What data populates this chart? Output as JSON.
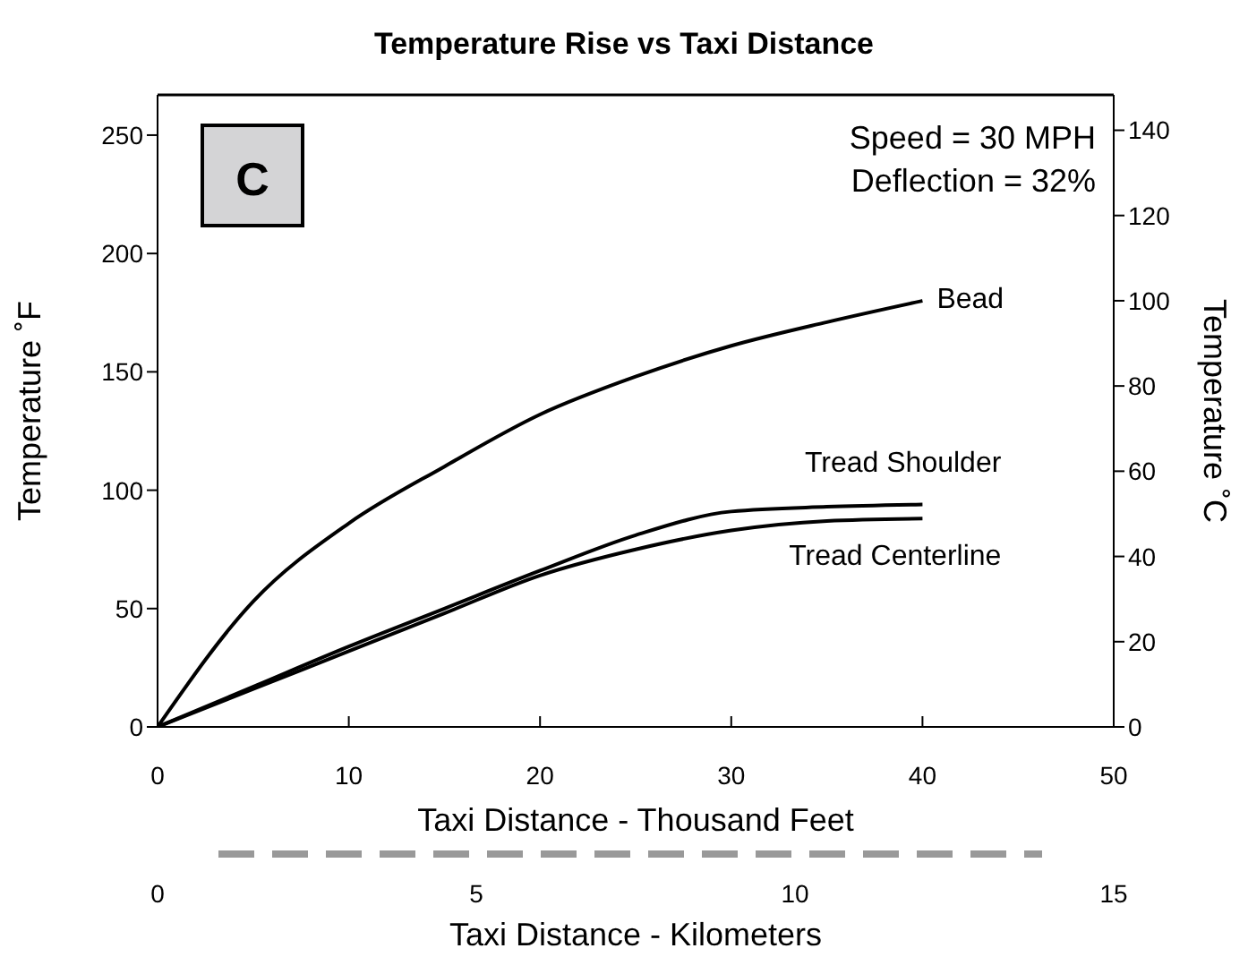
{
  "chart_data": {
    "type": "line",
    "title": "Temperature Rise vs Taxi Distance",
    "xlabel": "Taxi Distance - Thousand Feet",
    "ylabel": "Temperature ˚F",
    "y2label": "Temperature ˚C",
    "x2label": "Taxi Distance - Kilometers",
    "x": [
      0,
      5,
      10,
      15,
      20,
      25,
      30,
      35,
      40
    ],
    "series": [
      {
        "name": "Bead",
        "color": "#000000",
        "values": [
          0,
          53,
          86,
          110,
          132,
          148,
          161,
          171,
          180
        ]
      },
      {
        "name": "Tread Shoulder",
        "color": "#000000",
        "values": [
          0,
          17,
          34,
          50,
          66,
          81,
          91,
          93,
          94
        ]
      },
      {
        "name": "Tread Centerline",
        "color": "#000000",
        "values": [
          0,
          16,
          32,
          48,
          64,
          75,
          83,
          87,
          88
        ]
      }
    ],
    "xlim": [
      0,
      50
    ],
    "xticks": [
      0,
      10,
      20,
      30,
      40,
      50
    ],
    "x2lim": [
      0,
      15
    ],
    "x2ticks": [
      0,
      5,
      10,
      15
    ],
    "ylim": [
      0,
      267
    ],
    "yticks": [
      0,
      50,
      100,
      150,
      200,
      250
    ],
    "y2lim": [
      0,
      148.3
    ],
    "y2ticks": [
      0,
      20,
      40,
      60,
      80,
      100,
      120,
      140
    ],
    "annotations": [
      "C",
      "Speed = 30 MPH",
      "Deflection = 32%"
    ],
    "legend": false,
    "grid": false,
    "marker": "none",
    "line_style": "solid"
  }
}
